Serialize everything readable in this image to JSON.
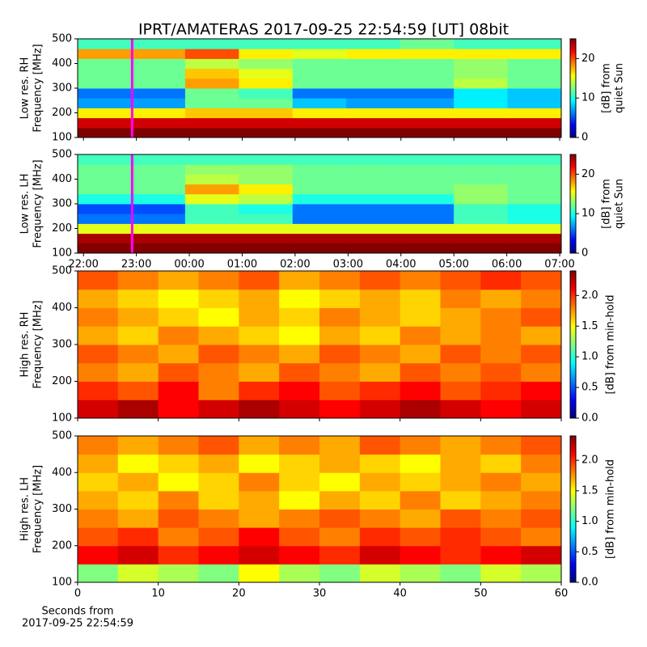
{
  "title": "IPRT/AMATERAS 2017-09-25 22:54:59 [UT]   08bit",
  "chart_data": [
    {
      "type": "heatmap",
      "ylabel": [
        "Low res. RH",
        "Frequency [MHz]"
      ],
      "ylim": [
        100,
        500
      ],
      "yticks": [
        100,
        200,
        300,
        400,
        500
      ],
      "xlim": [
        21.89,
        31.03
      ],
      "colormap": "jet",
      "colorbar": {
        "label": [
          "[dB] from",
          "quiet Sun"
        ],
        "lim": [
          0,
          25
        ],
        "ticks": [
          0,
          10,
          20
        ]
      },
      "marker": {
        "x": 22.92,
        "color": "#ff00ff"
      },
      "z": [
        [
          25,
          25,
          25,
          25,
          25,
          25,
          25,
          25,
          25
        ],
        [
          23,
          23,
          23,
          23,
          23,
          23,
          23,
          23,
          23
        ],
        [
          16,
          16,
          17,
          17,
          16,
          16,
          16,
          16,
          16
        ],
        [
          7,
          7,
          12,
          12,
          8,
          7,
          7,
          9,
          8
        ],
        [
          6,
          6,
          12,
          11,
          6,
          6,
          6,
          9,
          8
        ],
        [
          12,
          12,
          18,
          16,
          12,
          12,
          12,
          14,
          12
        ],
        [
          12,
          12,
          17,
          15,
          12,
          12,
          12,
          13,
          12
        ],
        [
          12,
          12,
          14,
          13,
          12,
          12,
          12,
          13,
          12
        ],
        [
          18,
          18,
          20,
          16,
          15,
          16,
          16,
          16,
          16
        ],
        [
          11,
          11,
          11,
          11,
          11,
          11,
          12,
          11,
          11
        ]
      ]
    },
    {
      "type": "heatmap",
      "ylabel": [
        "Low res. LH",
        "Frequency [MHz]"
      ],
      "ylim": [
        100,
        500
      ],
      "yticks": [
        100,
        200,
        300,
        400,
        500
      ],
      "xlim": [
        21.89,
        31.03
      ],
      "colormap": "jet",
      "xticks": [
        {
          "value": 22,
          "label": "22:00"
        },
        {
          "value": 23,
          "label": "23:00"
        },
        {
          "value": 24,
          "label": "00:00"
        },
        {
          "value": 25,
          "label": "01:00"
        },
        {
          "value": 26,
          "label": "02:00"
        },
        {
          "value": 27,
          "label": "03:00"
        },
        {
          "value": 28,
          "label": "04:00"
        },
        {
          "value": 29,
          "label": "05:00"
        },
        {
          "value": 30,
          "label": "06:00"
        },
        {
          "value": 31,
          "label": "07:00"
        }
      ],
      "colorbar": {
        "label": [
          "[dB] from",
          "quiet Sun"
        ],
        "lim": [
          0,
          25
        ],
        "ticks": [
          0,
          10,
          20
        ]
      },
      "marker": {
        "x": 22.92,
        "color": "#ff00ff"
      },
      "z": [
        [
          25,
          25,
          25,
          25,
          25,
          25,
          25,
          25,
          25
        ],
        [
          24,
          24,
          24,
          24,
          24,
          24,
          24,
          24,
          24
        ],
        [
          15,
          15,
          15,
          15,
          15,
          15,
          15,
          15,
          15
        ],
        [
          6,
          6,
          11,
          11,
          6,
          6,
          6,
          11,
          10
        ],
        [
          5,
          5,
          11,
          10,
          6,
          6,
          6,
          11,
          10
        ],
        [
          10,
          10,
          15,
          14,
          10,
          10,
          10,
          13,
          12
        ],
        [
          12,
          12,
          18,
          16,
          12,
          12,
          12,
          13,
          12
        ],
        [
          12,
          12,
          14,
          13,
          12,
          12,
          12,
          12,
          12
        ],
        [
          12,
          12,
          13,
          13,
          12,
          12,
          12,
          12,
          12
        ],
        [
          11,
          11,
          11,
          11,
          11,
          11,
          11,
          11,
          11
        ]
      ]
    },
    {
      "type": "heatmap",
      "ylabel": [
        "High res. RH",
        "Frequency [MHz]"
      ],
      "ylim": [
        100,
        500
      ],
      "yticks": [
        100,
        200,
        300,
        400,
        500
      ],
      "xlim": [
        0,
        60
      ],
      "colormap": "jet",
      "colorbar": {
        "label": [
          "[dB] from min-hold"
        ],
        "lim": [
          0,
          2.4
        ],
        "ticks": [
          {
            "value": 0,
            "label": "0.0"
          },
          {
            "value": 0.5,
            "label": "0.5"
          },
          {
            "value": 1,
            "label": "1.0"
          },
          {
            "value": 1.5,
            "label": "1.5"
          },
          {
            "value": 2,
            "label": "2.0"
          }
        ]
      },
      "z": [
        [
          2.2,
          2.3,
          2.1,
          2.2,
          2.3,
          2.2,
          2.1,
          2.2,
          2.3,
          2.2,
          2.1,
          2.2
        ],
        [
          2.0,
          1.9,
          2.1,
          1.8,
          2.0,
          2.1,
          1.9,
          2.0,
          2.1,
          1.9,
          2.0,
          2.1
        ],
        [
          1.8,
          1.7,
          1.9,
          1.8,
          1.7,
          1.9,
          1.8,
          1.7,
          1.9,
          1.8,
          1.9,
          1.8
        ],
        [
          1.9,
          1.8,
          1.7,
          1.9,
          1.8,
          1.7,
          1.9,
          1.8,
          1.7,
          1.9,
          1.8,
          1.9
        ],
        [
          1.7,
          1.6,
          1.8,
          1.7,
          1.6,
          1.5,
          1.7,
          1.6,
          1.8,
          1.7,
          1.8,
          1.7
        ],
        [
          1.8,
          1.7,
          1.6,
          1.5,
          1.7,
          1.6,
          1.8,
          1.7,
          1.6,
          1.7,
          1.8,
          1.9
        ],
        [
          1.7,
          1.6,
          1.5,
          1.6,
          1.7,
          1.5,
          1.6,
          1.7,
          1.6,
          1.8,
          1.7,
          1.8
        ],
        [
          1.9,
          1.8,
          1.7,
          1.8,
          1.9,
          1.7,
          1.8,
          1.9,
          1.8,
          1.9,
          2.0,
          1.9
        ]
      ]
    },
    {
      "type": "heatmap",
      "ylabel": [
        "High res. LH",
        "Frequency [MHz]"
      ],
      "ylim": [
        100,
        500
      ],
      "yticks": [
        100,
        200,
        300,
        400,
        500
      ],
      "xlim": [
        0,
        60
      ],
      "colormap": "jet",
      "xticks": [
        0,
        10,
        20,
        30,
        40,
        50,
        60
      ],
      "xlabel": [
        "Seconds from",
        "2017-09-25 22:54:59"
      ],
      "colorbar": {
        "label": [
          "[dB] from min-hold"
        ],
        "lim": [
          0,
          2.4
        ],
        "ticks": [
          {
            "value": 0,
            "label": "0.0"
          },
          {
            "value": 0.5,
            "label": "0.5"
          },
          {
            "value": 1,
            "label": "1.0"
          },
          {
            "value": 1.5,
            "label": "1.5"
          },
          {
            "value": 2,
            "label": "2.0"
          }
        ]
      },
      "z": [
        [
          1.2,
          1.4,
          1.3,
          1.2,
          1.5,
          1.3,
          1.2,
          1.4,
          1.3,
          1.2,
          1.4,
          1.3
        ],
        [
          2.1,
          2.2,
          2.0,
          2.1,
          2.2,
          2.1,
          2.0,
          2.2,
          2.1,
          2.0,
          2.1,
          2.2
        ],
        [
          1.9,
          2.0,
          1.8,
          1.9,
          2.1,
          1.9,
          1.8,
          2.0,
          1.9,
          2.0,
          1.9,
          1.8
        ],
        [
          1.8,
          1.7,
          1.9,
          1.8,
          1.7,
          1.8,
          1.9,
          1.8,
          1.7,
          1.9,
          1.8,
          1.9
        ],
        [
          1.7,
          1.6,
          1.8,
          1.6,
          1.7,
          1.5,
          1.7,
          1.6,
          1.8,
          1.6,
          1.7,
          1.8
        ],
        [
          1.6,
          1.7,
          1.5,
          1.6,
          1.8,
          1.6,
          1.5,
          1.7,
          1.6,
          1.7,
          1.8,
          1.7
        ],
        [
          1.7,
          1.5,
          1.6,
          1.7,
          1.5,
          1.6,
          1.7,
          1.6,
          1.5,
          1.7,
          1.6,
          1.8
        ],
        [
          1.8,
          1.7,
          1.8,
          1.9,
          1.7,
          1.8,
          1.7,
          1.9,
          1.8,
          1.7,
          1.8,
          1.9
        ]
      ]
    }
  ]
}
